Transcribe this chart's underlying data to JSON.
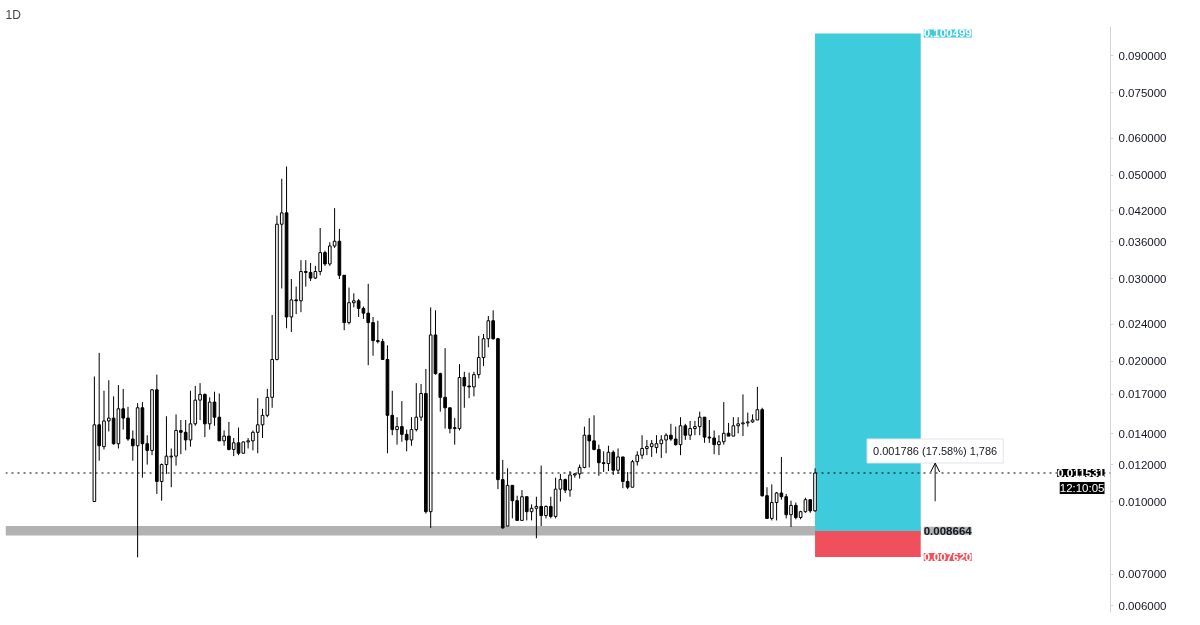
{
  "chart_data": {
    "type": "candlestick",
    "title": "1D",
    "log": true,
    "tick_labels": "y",
    "categories": [
      null,
      null,
      null,
      null,
      null,
      null,
      null,
      null,
      null,
      null,
      null,
      null,
      null,
      null,
      null,
      null,
      null,
      null,
      null,
      null,
      null,
      null,
      null,
      null,
      null,
      null,
      null,
      null,
      null,
      null,
      null,
      null,
      null,
      null,
      null,
      null,
      null,
      null,
      null,
      null,
      null,
      null,
      null,
      null,
      null,
      null,
      null,
      null,
      null,
      null,
      null,
      null,
      null,
      null,
      null,
      null,
      null,
      null,
      null,
      null,
      null,
      null,
      null,
      null,
      null,
      null,
      null,
      null,
      null,
      null,
      null,
      null,
      null,
      null,
      null,
      null,
      null,
      null,
      null,
      null,
      null,
      null,
      null,
      null,
      null,
      null,
      null,
      null,
      null,
      null,
      null,
      null,
      null,
      null,
      null,
      null,
      null,
      null,
      null,
      null,
      null,
      null,
      null,
      null,
      null,
      null,
      null,
      null,
      null,
      null,
      null,
      null,
      null,
      null,
      null,
      null,
      null,
      null,
      null,
      null,
      null,
      null,
      null,
      null,
      null,
      null,
      null,
      null,
      null,
      null,
      null,
      null,
      null,
      null,
      null,
      null,
      null,
      null,
      null,
      null,
      null,
      null,
      null,
      null,
      null,
      null,
      null,
      null,
      null,
      null,
      null,
      null,
      null,
      null,
      null,
      null,
      null,
      null,
      null,
      null,
      null,
      null,
      null,
      null,
      null,
      null,
      null,
      null,
      null,
      null,
      null,
      null,
      null,
      null,
      null,
      null,
      null,
      null,
      null,
      null,
      null,
      null,
      null,
      null,
      null,
      null,
      null,
      null,
      null,
      null,
      null,
      null,
      null,
      null,
      null,
      null,
      null,
      null,
      null,
      null,
      null,
      null,
      null,
      null,
      null,
      null,
      null,
      null,
      null,
      null,
      null,
      null,
      null,
      null,
      null,
      null,
      null,
      null,
      null,
      null,
      null,
      null,
      null,
      null,
      null,
      null,
      null,
      null,
      null,
      null
    ],
    "ohlc": [
      null,
      null,
      null,
      null,
      null,
      null,
      null,
      null,
      null,
      null,
      null,
      null,
      null,
      null,
      null,
      null,
      null,
      null,
      [
        0.01002,
        0.01855,
        0.01002,
        0.01462
      ],
      [
        0.01462,
        0.02084,
        0.01225,
        0.01319
      ],
      [
        0.01313,
        0.01729,
        0.01295,
        0.0149
      ],
      [
        0.0149,
        0.01821,
        0.01415,
        0.01511
      ],
      [
        0.01511,
        0.01682,
        0.01326,
        0.01332
      ],
      [
        0.01332,
        0.01778,
        0.01301,
        0.01582
      ],
      [
        0.01582,
        0.01745,
        0.01428,
        0.01511
      ],
      [
        0.01511,
        0.01597,
        0.01351,
        0.01363
      ],
      [
        0.01363,
        0.01422,
        0.01225,
        0.01319
      ],
      [
        0.01319,
        0.01627,
        0.00761,
        0.0159
      ],
      [
        0.0159,
        0.01635,
        0.01127,
        0.01332
      ],
      [
        0.01332,
        0.01389,
        0.01202,
        0.01289
      ],
      [
        0.01289,
        0.01745,
        0.01259,
        0.01737
      ],
      [
        0.01737,
        0.01872,
        0.0104,
        0.01106
      ],
      [
        0.01106,
        0.01208,
        0.01006,
        0.01202
      ],
      [
        0.01202,
        0.01525,
        0.01148,
        0.01253
      ],
      [
        0.01248,
        0.01301,
        0.01075,
        0.01253
      ],
      [
        0.01253,
        0.01539,
        0.01196,
        0.01422
      ],
      [
        0.01422,
        0.01497,
        0.01265,
        0.01409
      ],
      [
        0.01409,
        0.01497,
        0.01289,
        0.01357
      ],
      [
        0.01357,
        0.01729,
        0.01313,
        0.01469
      ],
      [
        0.01469,
        0.0177,
        0.01455,
        0.01651
      ],
      [
        0.01651,
        0.01795,
        0.01497,
        0.01698
      ],
      [
        0.01698,
        0.01706,
        0.01376,
        0.01469
      ],
      [
        0.01469,
        0.01674,
        0.01428,
        0.01635
      ],
      [
        0.01635,
        0.01721,
        0.01455,
        0.01518
      ],
      [
        0.01518,
        0.01706,
        0.01351,
        0.01351
      ],
      [
        0.01351,
        0.01422,
        0.01319,
        0.01383
      ],
      [
        0.01383,
        0.01483,
        0.01289,
        0.01295
      ],
      [
        0.01295,
        0.0137,
        0.01253,
        0.01338
      ],
      [
        0.01338,
        0.01442,
        0.01259,
        0.01271
      ],
      [
        0.01271,
        0.01345,
        0.01271,
        0.01344
      ],
      [
        0.01344,
        0.0137,
        0.01301,
        0.01351
      ],
      [
        0.01351,
        0.01422,
        0.01289,
        0.01409
      ],
      [
        0.01409,
        0.01667,
        0.01271,
        0.01462
      ],
      [
        0.01462,
        0.01582,
        0.0137,
        0.01532
      ],
      [
        0.01532,
        0.01745,
        0.01518,
        0.01674
      ],
      [
        0.01674,
        0.02511,
        0.0159,
        0.02017
      ],
      [
        0.02017,
        0.04096,
        0.02008,
        0.03927
      ],
      [
        0.03927,
        0.04912,
        0.02861,
        0.04153
      ],
      [
        0.04153,
        0.05219,
        0.02352,
        0.02487
      ],
      [
        0.02487,
        0.02998,
        0.02308,
        0.02705
      ],
      [
        0.02705,
        0.02888,
        0.02522,
        0.02693
      ],
      [
        0.02693,
        0.0329,
        0.02546,
        0.03111
      ],
      [
        0.03111,
        0.0329,
        0.02888,
        0.03097
      ],
      [
        0.03097,
        0.03244,
        0.0297,
        0.03012
      ],
      [
        0.03012,
        0.03199,
        0.02998,
        0.03111
      ],
      [
        0.03111,
        0.03855,
        0.03054,
        0.03415
      ],
      [
        0.03415,
        0.03447,
        0.03199,
        0.03229
      ],
      [
        0.03229,
        0.03594,
        0.03199,
        0.03528
      ],
      [
        0.03528,
        0.04251,
        0.03495,
        0.03611
      ],
      [
        0.03611,
        0.03837,
        0.02998,
        0.03054
      ],
      [
        0.03054,
        0.03054,
        0.0233,
        0.02419
      ],
      [
        0.02419,
        0.02874,
        0.02397,
        0.02668
      ],
      [
        0.02668,
        0.02795,
        0.02607,
        0.02693
      ],
      [
        0.02693,
        0.02718,
        0.02487,
        0.02594
      ],
      [
        0.02594,
        0.02619,
        0.02464,
        0.02534
      ],
      [
        0.02534,
        0.02928,
        0.01961,
        0.02419
      ],
      [
        0.02419,
        0.02487,
        0.02055,
        0.02213
      ],
      [
        0.02213,
        0.02441,
        0.02183,
        0.02203
      ],
      [
        0.02203,
        0.02234,
        0.02017,
        0.02017
      ],
      [
        0.02017,
        0.02162,
        0.01271,
        0.01532
      ],
      [
        0.01532,
        0.01729,
        0.01389,
        0.01428
      ],
      [
        0.01428,
        0.01518,
        0.01326,
        0.01449
      ],
      [
        0.01449,
        0.01643,
        0.01345,
        0.01395
      ],
      [
        0.01395,
        0.01428,
        0.01283,
        0.01357
      ],
      [
        0.01357,
        0.01518,
        0.01319,
        0.01428
      ],
      [
        0.01428,
        0.01795,
        0.01415,
        0.01518
      ],
      [
        0.01518,
        0.01787,
        0.0149,
        0.01706
      ],
      [
        0.01706,
        0.01925,
        0.00944,
        0.00953
      ],
      [
        0.00953,
        0.02607,
        0.0088,
        0.02276
      ],
      [
        0.02276,
        0.0257,
        0.01872,
        0.01881
      ],
      [
        0.01881,
        0.0189,
        0.0156,
        0.01674
      ],
      [
        0.01674,
        0.02133,
        0.01435,
        0.0159
      ],
      [
        0.0159,
        0.0159,
        0.01402,
        0.01435
      ],
      [
        0.01435,
        0.01511,
        0.01326,
        0.01442
      ],
      [
        0.01435,
        0.01971,
        0.01422,
        0.01846
      ],
      [
        0.01846,
        0.01898,
        0.0159,
        0.0177
      ],
      [
        0.0177,
        0.0189,
        0.01667,
        0.01762
      ],
      [
        0.01762,
        0.01898,
        0.01682,
        0.01872
      ],
      [
        0.01872,
        0.02266,
        0.01838,
        0.02036
      ],
      [
        0.02036,
        0.02287,
        0.01952,
        0.02234
      ],
      [
        0.02234,
        0.02499,
        0.02142,
        0.02441
      ],
      [
        0.02441,
        0.0257,
        0.02224,
        0.02234
      ],
      [
        0.02234,
        0.02244,
        0.01065,
        0.01116
      ],
      [
        0.01116,
        0.0123,
        0.00876,
        0.0088
      ],
      [
        0.00888,
        0.0118,
        0.00888,
        0.01085
      ],
      [
        0.01085,
        0.01085,
        0.00922,
        0.01006
      ],
      [
        0.01006,
        0.01031,
        0.00913,
        0.00913
      ],
      [
        0.00913,
        0.0106,
        0.00913,
        0.01026
      ],
      [
        0.01026,
        0.01026,
        0.00913,
        0.00953
      ],
      [
        0.00953,
        0.00988,
        0.00913,
        0.00969
      ],
      [
        0.00969,
        0.01026,
        0.00836,
        0.00978
      ],
      [
        0.00978,
        0.01196,
        0.00888,
        0.00935
      ],
      [
        0.00935,
        0.00983,
        0.00922,
        0.00978
      ],
      [
        0.00978,
        0.01026,
        0.00922,
        0.00931
      ],
      [
        0.00931,
        0.01127,
        0.00922,
        0.01065
      ],
      [
        0.01065,
        0.01148,
        0.01002,
        0.01116
      ],
      [
        0.01116,
        0.01122,
        0.01045,
        0.0106
      ],
      [
        0.0106,
        0.01164,
        0.01026,
        0.01142
      ],
      [
        0.01142,
        0.01153,
        0.01127,
        0.01148
      ],
      [
        0.01148,
        0.01202,
        0.01122,
        0.01185
      ],
      [
        0.01185,
        0.01449,
        0.0118,
        0.01389
      ],
      [
        0.01389,
        0.01511,
        0.01185,
        0.01351
      ],
      [
        0.01351,
        0.01532,
        0.01289,
        0.01295
      ],
      [
        0.01295,
        0.01326,
        0.01137,
        0.01213
      ],
      [
        0.01213,
        0.01283,
        0.01159,
        0.01208
      ],
      [
        0.01208,
        0.01319,
        0.01164,
        0.01277
      ],
      [
        0.01277,
        0.01289,
        0.01142,
        0.01169
      ],
      [
        0.01169,
        0.01301,
        0.01148,
        0.01248
      ],
      [
        0.01248,
        0.01248,
        0.0107,
        0.01106
      ],
      [
        0.01106,
        0.01159,
        0.01065,
        0.01075
      ],
      [
        0.01075,
        0.0123,
        0.01075,
        0.01219
      ],
      [
        0.01219,
        0.01283,
        0.01196,
        0.01259
      ],
      [
        0.01259,
        0.01389,
        0.01236,
        0.01301
      ],
      [
        0.01301,
        0.01357,
        0.01259,
        0.01313
      ],
      [
        0.01313,
        0.01357,
        0.01248,
        0.01332
      ],
      [
        0.01307,
        0.01389,
        0.01271,
        0.01332
      ],
      [
        0.01332,
        0.01389,
        0.01242,
        0.01357
      ],
      [
        0.01357,
        0.01402,
        0.01271,
        0.01389
      ],
      [
        0.01389,
        0.01469,
        0.01351,
        0.01363
      ],
      [
        0.01363,
        0.01449,
        0.01319,
        0.01326
      ],
      [
        0.01326,
        0.01518,
        0.01259,
        0.01455
      ],
      [
        0.01455,
        0.01469,
        0.01357,
        0.01389
      ],
      [
        0.01389,
        0.0149,
        0.01357,
        0.01435
      ],
      [
        0.01435,
        0.0149,
        0.01389,
        0.01449
      ],
      [
        0.01449,
        0.0156,
        0.01389,
        0.01518
      ],
      [
        0.01518,
        0.01518,
        0.01338,
        0.01376
      ],
      [
        0.01376,
        0.01497,
        0.01338,
        0.0137
      ],
      [
        0.0137,
        0.01422,
        0.01265,
        0.01326
      ],
      [
        0.01326,
        0.01389,
        0.01259,
        0.01345
      ],
      [
        0.01345,
        0.01635,
        0.01326,
        0.01402
      ],
      [
        0.01402,
        0.01476,
        0.01383,
        0.01383
      ],
      [
        0.01383,
        0.01518,
        0.01383,
        0.01455
      ],
      [
        0.01455,
        0.01518,
        0.01402,
        0.01469
      ],
      [
        0.01469,
        0.01698,
        0.01383,
        0.01476
      ],
      [
        0.01476,
        0.01553,
        0.01449,
        0.01483
      ],
      [
        0.01483,
        0.01539,
        0.01476,
        0.01497
      ],
      [
        0.01497,
        0.01762,
        0.01497,
        0.01575
      ],
      [
        0.01575,
        0.0159,
        0.01026,
        0.01031
      ],
      [
        0.01031,
        0.01075,
        0.00922,
        0.00922
      ],
      [
        0.00922,
        0.0109,
        0.00913,
        0.00997
      ],
      [
        0.00997,
        0.0105,
        0.00913,
        0.01045
      ],
      [
        0.01045,
        0.01248,
        0.01011,
        0.01026
      ],
      [
        0.01026,
        0.0104,
        0.00922,
        0.00939
      ],
      [
        0.00939,
        0.01006,
        0.00884,
        0.00983
      ],
      [
        0.00983,
        0.00997,
        0.00918,
        0.00926
      ],
      [
        0.00926,
        0.00957,
        0.00918,
        0.00953
      ],
      [
        0.00953,
        0.01021,
        0.00948,
        0.01011
      ],
      [
        0.01011,
        0.01011,
        0.00948,
        0.00957
      ],
      [
        0.00957,
        0.0118,
        0.00953,
        0.011531
      ],
      null,
      null,
      null,
      null,
      null,
      null,
      null,
      null,
      null,
      null,
      null,
      null,
      null,
      null,
      null,
      null,
      null,
      null,
      null,
      null,
      null,
      null,
      null,
      null,
      null,
      null,
      null,
      null,
      null,
      null,
      null,
      null,
      null,
      null,
      null,
      null,
      null,
      null,
      null,
      null,
      null,
      null,
      null,
      null,
      null,
      null,
      null,
      null,
      null,
      null,
      null,
      null,
      null,
      null,
      null,
      null,
      null,
      null,
      null,
      null,
      null
    ],
    "ylim": [
      0.0058,
      0.104
    ],
    "yticks": [
      {
        "value": 0.006,
        "label": "0.006000"
      },
      {
        "value": 0.007,
        "label": "0.007000"
      },
      {
        "value": 0.01,
        "label": "0.010000"
      },
      {
        "value": 0.012,
        "label": "0.012000"
      },
      {
        "value": 0.014,
        "label": "0.014000"
      },
      {
        "value": 0.017,
        "label": "0.017000"
      },
      {
        "value": 0.02,
        "label": "0.020000"
      },
      {
        "value": 0.024,
        "label": "0.024000"
      },
      {
        "value": 0.03,
        "label": "0.030000"
      },
      {
        "value": 0.036,
        "label": "0.036000"
      },
      {
        "value": 0.042,
        "label": "0.042000"
      },
      {
        "value": 0.05,
        "label": "0.050000"
      },
      {
        "value": 0.06,
        "label": "0.060000"
      },
      {
        "value": 0.075,
        "label": "0.075000"
      },
      {
        "value": 0.09,
        "label": "0.090000"
      }
    ],
    "bands": [
      {
        "axis": "y",
        "from": 0.00848,
        "to": 0.00888,
        "label": "0.008664",
        "color": "#b2b2b2"
      },
      {
        "axis": "y",
        "from": 0.008664,
        "to": 0.100499,
        "label": "0.100499",
        "color": "#3ecbdc"
      },
      {
        "axis": "y",
        "from": 0.00762,
        "to": 0.008664,
        "label": "0.007620",
        "color": "#f0505e"
      }
    ],
    "ref_lines": [
      {
        "axis": "y",
        "value": 0.011531,
        "label": "0.011531",
        "color": "#000000",
        "line_style": "dotted"
      }
    ],
    "annotations": [
      "0.001786 (17.58%) 1,786",
      "12:10:05"
    ]
  }
}
